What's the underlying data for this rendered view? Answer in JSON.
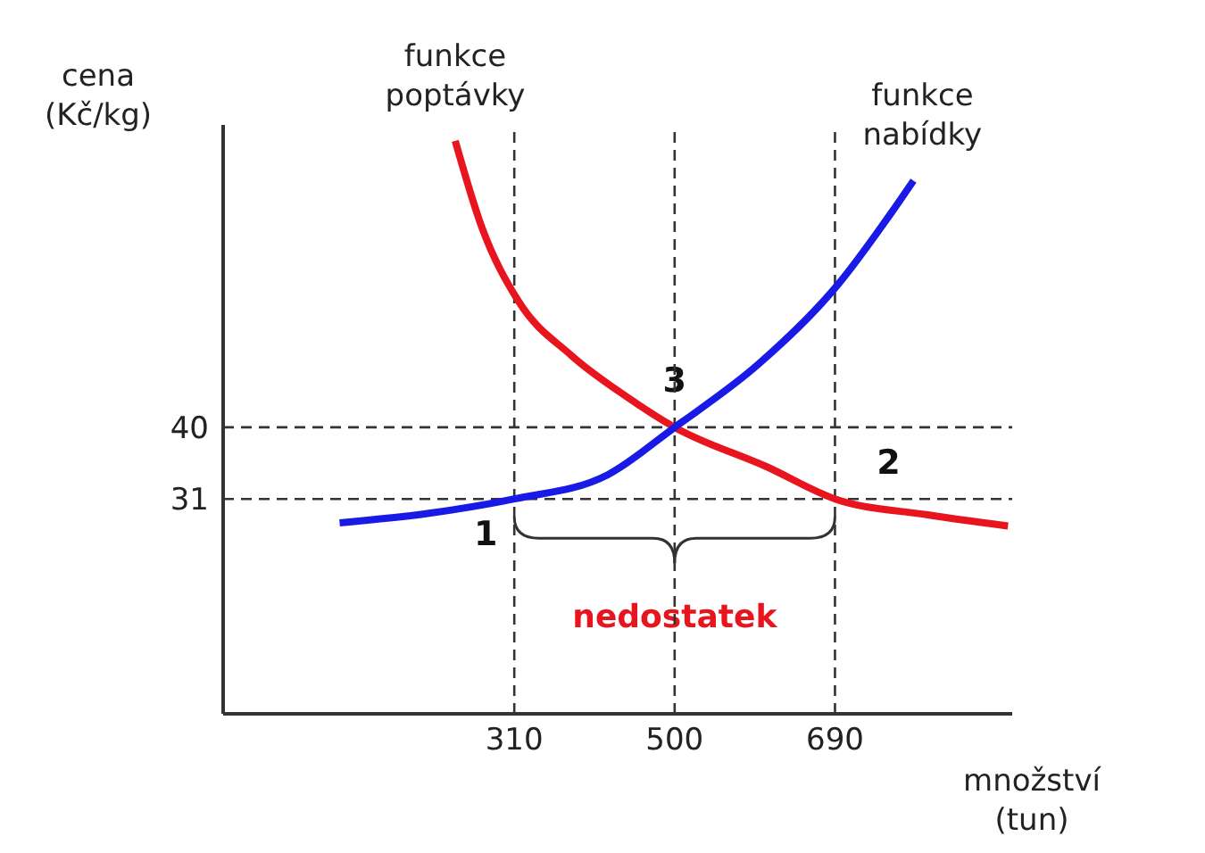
{
  "chart_data": {
    "type": "line",
    "xlabel": "množství (tun)",
    "ylabel": "cena (Kč/kg)",
    "series": [
      {
        "name": "funkce poptávky",
        "color": "#e8141e",
        "x": [
          240,
          272,
          314,
          378,
          441,
          500,
          610,
          690,
          800,
          895
        ],
        "values": [
          76,
          65,
          56,
          49,
          44,
          40,
          35,
          31,
          29,
          27.6
        ]
      },
      {
        "name": "funkce nabídky",
        "color": "#1a1ae6",
        "x": [
          103,
          209,
          310,
          420,
          500,
          600,
          694,
          757,
          783
        ],
        "values": [
          28,
          29.2,
          31,
          34,
          40,
          48,
          58,
          67,
          71
        ]
      }
    ],
    "xlim": [
      -35,
      900
    ],
    "ylim": [
      4,
      78
    ],
    "xticks": [
      310,
      500,
      690
    ],
    "yticks": [
      31,
      40
    ],
    "ref_lines": [
      {
        "axis": "y",
        "value": 40,
        "line_style": "dashed"
      },
      {
        "axis": "y",
        "value": 31,
        "line_style": "dashed"
      },
      {
        "axis": "x",
        "value": 310,
        "line_style": "dashed"
      },
      {
        "axis": "x",
        "value": 500,
        "line_style": "dashed"
      },
      {
        "axis": "x",
        "value": 690,
        "line_style": "dashed"
      }
    ],
    "annotations": [
      {
        "text": "1",
        "x": 310,
        "y": 31
      },
      {
        "text": "2",
        "x": 690,
        "y": 31
      },
      {
        "text": "3",
        "x": 500,
        "y": 40
      },
      "nedostatek"
    ],
    "grid": false,
    "marker": "none",
    "line_style": "solid"
  }
}
